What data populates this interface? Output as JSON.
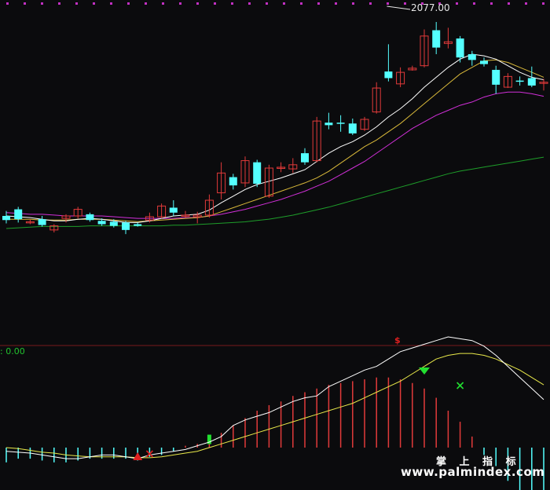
{
  "peak_label": "2077.00",
  "sub_panel_label": ": 0.00",
  "signal_marker": "$",
  "watermark": {
    "title": "掌 上 指 标",
    "url": "www.palmindex.com"
  },
  "colors": {
    "background": "#0b0b0d",
    "candle_up": "#e23a3a",
    "candle_down": "#54ffff",
    "ma_short": "#ffffff",
    "ma_mid": "#d9b93a",
    "ma_long": "#d12fd8",
    "ma_longest": "#1e9e2a",
    "dif_line": "#ffffff",
    "dea_line": "#e9e94a",
    "hist_pos": "#e23a3a",
    "hist_neg": "#54ffff",
    "dotted_rule": "#c230c2",
    "separator": "#7a1a1a",
    "buy_marker": "#e02020",
    "sell_marker": "#22e030"
  },
  "chart_data": {
    "type": "candlestick",
    "candles": [
      {
        "open": 20,
        "close": 15,
        "high": 26,
        "low": 11
      },
      {
        "open": 28,
        "close": 16,
        "high": 31,
        "low": 12
      },
      {
        "open": 12,
        "close": 13,
        "high": 16,
        "low": 10
      },
      {
        "open": 16,
        "close": 9,
        "high": 20,
        "low": 7
      },
      {
        "open": 3,
        "close": 8,
        "high": 10,
        "low": 0
      },
      {
        "open": 17,
        "close": 20,
        "high": 22,
        "low": 12
      },
      {
        "open": 20,
        "close": 28,
        "high": 31,
        "low": 17
      },
      {
        "open": 22,
        "close": 15,
        "high": 24,
        "low": 13
      },
      {
        "open": 14,
        "close": 10,
        "high": 17,
        "low": 8
      },
      {
        "open": 13,
        "close": 8,
        "high": 16,
        "low": 6
      },
      {
        "open": 12,
        "close": 3,
        "high": 14,
        "low": -2
      },
      {
        "open": 10,
        "close": 8,
        "high": 12,
        "low": 7
      },
      {
        "open": 15,
        "close": 19,
        "high": 24,
        "low": 12
      },
      {
        "open": 19,
        "close": 32,
        "high": 35,
        "low": 17
      },
      {
        "open": 30,
        "close": 24,
        "high": 39,
        "low": 20
      },
      {
        "open": 20,
        "close": 21,
        "high": 26,
        "low": 18
      },
      {
        "open": 19,
        "close": 21,
        "high": 25,
        "low": 11
      },
      {
        "open": 21,
        "close": 39,
        "high": 46,
        "low": 18
      },
      {
        "open": 48,
        "close": 72,
        "high": 85,
        "low": 40
      },
      {
        "open": 67,
        "close": 57,
        "high": 71,
        "low": 52
      },
      {
        "open": 60,
        "close": 87,
        "high": 92,
        "low": 55
      },
      {
        "open": 85,
        "close": 59,
        "high": 88,
        "low": 55
      },
      {
        "open": 44,
        "close": 78,
        "high": 82,
        "low": 42
      },
      {
        "open": 78,
        "close": 79,
        "high": 85,
        "low": 73
      },
      {
        "open": 77,
        "close": 82,
        "high": 90,
        "low": 72
      },
      {
        "open": 96,
        "close": 85,
        "high": 102,
        "low": 82
      },
      {
        "open": 87,
        "close": 135,
        "high": 140,
        "low": 85
      },
      {
        "open": 133,
        "close": 130,
        "high": 145,
        "low": 125
      },
      {
        "open": 133,
        "close": 132,
        "high": 142,
        "low": 122
      },
      {
        "open": 132,
        "close": 120,
        "high": 138,
        "low": 118
      },
      {
        "open": 125,
        "close": 137,
        "high": 140,
        "low": 123
      },
      {
        "open": 146,
        "close": 175,
        "high": 182,
        "low": 144
      },
      {
        "open": 195,
        "close": 187,
        "high": 228,
        "low": 183
      },
      {
        "open": 180,
        "close": 194,
        "high": 200,
        "low": 176
      },
      {
        "open": 197,
        "close": 199,
        "high": 202,
        "low": 196
      },
      {
        "open": 202,
        "close": 238,
        "high": 246,
        "low": 200
      },
      {
        "open": 245,
        "close": 224,
        "high": 255,
        "low": 216
      },
      {
        "open": 229,
        "close": 231,
        "high": 248,
        "low": 223
      },
      {
        "open": 235,
        "close": 212,
        "high": 238,
        "low": 206
      },
      {
        "open": 216,
        "close": 209,
        "high": 220,
        "low": 202
      },
      {
        "open": 208,
        "close": 204,
        "high": 212,
        "low": 201
      },
      {
        "open": 197,
        "close": 179,
        "high": 202,
        "low": 168
      },
      {
        "open": 176,
        "close": 189,
        "high": 193,
        "low": 175
      },
      {
        "open": 184,
        "close": 183,
        "high": 189,
        "low": 178
      },
      {
        "open": 187,
        "close": 178,
        "high": 201,
        "low": 176
      },
      {
        "open": 181,
        "close": 182,
        "high": 186,
        "low": 172
      }
    ],
    "ma_short": [
      20,
      19,
      18,
      16,
      14,
      14,
      16,
      17,
      16,
      14,
      12,
      12,
      14,
      17,
      20,
      21,
      22,
      27,
      36,
      44,
      52,
      58,
      62,
      66,
      71,
      76,
      86,
      96,
      104,
      110,
      118,
      128,
      140,
      150,
      162,
      176,
      188,
      200,
      210,
      216,
      214,
      210,
      202,
      194,
      188,
      185
    ],
    "ma_mid": [
      16,
      16,
      16,
      15,
      15,
      15,
      16,
      16,
      16,
      15,
      14,
      13,
      14,
      15,
      16,
      17,
      18,
      20,
      25,
      30,
      35,
      40,
      45,
      50,
      55,
      60,
      66,
      74,
      84,
      94,
      104,
      112,
      122,
      132,
      144,
      156,
      168,
      180,
      192,
      200,
      208,
      209,
      206,
      200,
      194,
      188
    ],
    "ma_long": [
      24,
      23,
      22,
      22,
      21,
      20,
      20,
      20,
      20,
      19,
      18,
      17,
      17,
      17,
      17,
      18,
      18,
      20,
      22,
      25,
      28,
      32,
      36,
      40,
      45,
      50,
      56,
      62,
      70,
      78,
      86,
      96,
      106,
      116,
      126,
      134,
      142,
      148,
      154,
      158,
      164,
      168,
      170,
      170,
      168,
      165
    ],
    "ma_longest": [
      0,
      1,
      2,
      3,
      3,
      3,
      3,
      4,
      4,
      4,
      4,
      4,
      4,
      4,
      5,
      5,
      6,
      7,
      8,
      9,
      10,
      12,
      14,
      17,
      20,
      24,
      28,
      32,
      37,
      42,
      47,
      52,
      57,
      62,
      67,
      72,
      77,
      82,
      86,
      89,
      92,
      95,
      98,
      101,
      104,
      107
    ],
    "macd_hist": [
      -8,
      -6,
      -6,
      -7,
      -8,
      -8,
      -7,
      -6,
      -6,
      -6,
      -6,
      -7,
      -5,
      -4,
      -2,
      1,
      2,
      4,
      8,
      12,
      16,
      20,
      23,
      25,
      28,
      30,
      32,
      34,
      35,
      36,
      37,
      38,
      38,
      37,
      35,
      32,
      27,
      20,
      14,
      6,
      -4,
      -10,
      -18,
      -24,
      -30,
      -36
    ],
    "macd_dif": [
      -2,
      -2.5,
      -3,
      -4,
      -5,
      -6,
      -6,
      -5,
      -4,
      -4,
      -5,
      -6,
      -4,
      -3,
      -2,
      -1,
      1,
      3,
      6,
      12,
      15,
      17,
      19,
      22,
      25,
      27,
      28,
      33,
      36,
      39,
      42,
      44,
      48,
      52,
      54,
      56,
      58,
      60,
      59,
      58,
      55,
      50,
      44,
      38,
      32,
      26
    ],
    "macd_dea": [
      0,
      -0.5,
      -1.5,
      -2.5,
      -3,
      -4,
      -4.5,
      -5,
      -5,
      -5,
      -5,
      -5.5,
      -5.5,
      -5,
      -4,
      -3,
      -2,
      0,
      2,
      4,
      6,
      8,
      10,
      12,
      14,
      16,
      18,
      20,
      22,
      24,
      27,
      30,
      33,
      36,
      40,
      44,
      48,
      50,
      51,
      51,
      50,
      48,
      45,
      42,
      38,
      34
    ],
    "markers": {
      "buy_index": 11,
      "cross_index": 12,
      "golden_bar_index": 17,
      "sell_index": 35,
      "dead_cross_index": 38
    }
  }
}
